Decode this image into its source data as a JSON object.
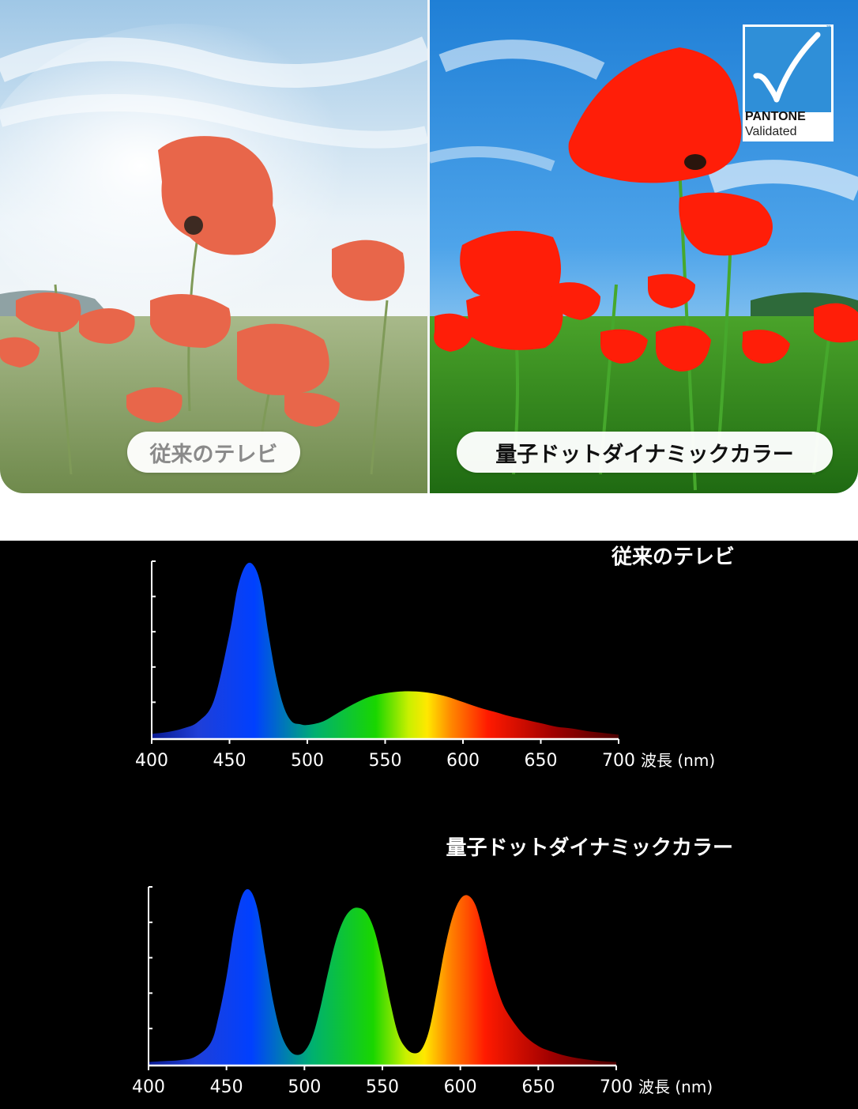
{
  "photo": {
    "left_label": "従来のテレビ",
    "right_label": "量子ドットダイナミックカラー",
    "badge": {
      "icon": "checkmark-icon",
      "name": "PANTONE",
      "subtitle": "Validated",
      "tm": "™"
    }
  },
  "chart_data": [
    {
      "type": "area",
      "title": "従来のテレビ",
      "xlabel": "波長 (nm)",
      "ylabel": "",
      "xlim": [
        400,
        700
      ],
      "ylim": [
        0,
        1
      ],
      "x_ticks": [
        400,
        450,
        500,
        550,
        600,
        650,
        700
      ],
      "y_tick_count": 5,
      "fill": "spectral-gradient",
      "x": [
        400,
        410,
        420,
        430,
        440,
        450,
        455,
        460,
        465,
        470,
        475,
        480,
        485,
        490,
        495,
        500,
        510,
        520,
        530,
        540,
        550,
        560,
        570,
        580,
        590,
        600,
        610,
        620,
        630,
        640,
        650,
        660,
        670,
        680,
        690,
        700
      ],
      "values": [
        0.03,
        0.04,
        0.06,
        0.1,
        0.22,
        0.6,
        0.85,
        0.98,
        0.99,
        0.88,
        0.6,
        0.35,
        0.18,
        0.1,
        0.085,
        0.08,
        0.1,
        0.15,
        0.2,
        0.24,
        0.26,
        0.27,
        0.27,
        0.26,
        0.24,
        0.21,
        0.18,
        0.155,
        0.13,
        0.11,
        0.09,
        0.07,
        0.06,
        0.045,
        0.035,
        0.025
      ]
    },
    {
      "type": "area",
      "title": "量子ドットダイナミックカラー",
      "xlabel": "波長 (nm)",
      "ylabel": "",
      "xlim": [
        400,
        700
      ],
      "ylim": [
        0,
        1
      ],
      "x_ticks": [
        400,
        450,
        500,
        550,
        600,
        650,
        700
      ],
      "y_tick_count": 5,
      "fill": "spectral-gradient",
      "x": [
        400,
        410,
        420,
        430,
        440,
        445,
        450,
        455,
        460,
        465,
        470,
        475,
        480,
        485,
        490,
        495,
        500,
        505,
        510,
        515,
        520,
        525,
        530,
        535,
        540,
        545,
        550,
        555,
        560,
        565,
        570,
        575,
        580,
        585,
        590,
        595,
        600,
        605,
        610,
        615,
        620,
        625,
        630,
        640,
        650,
        660,
        670,
        680,
        690,
        700
      ],
      "values": [
        0.02,
        0.025,
        0.03,
        0.05,
        0.13,
        0.28,
        0.5,
        0.78,
        0.96,
        0.99,
        0.88,
        0.62,
        0.36,
        0.18,
        0.09,
        0.06,
        0.08,
        0.16,
        0.32,
        0.52,
        0.7,
        0.82,
        0.88,
        0.89,
        0.86,
        0.76,
        0.58,
        0.36,
        0.18,
        0.1,
        0.07,
        0.09,
        0.2,
        0.42,
        0.66,
        0.84,
        0.94,
        0.96,
        0.9,
        0.74,
        0.55,
        0.4,
        0.3,
        0.18,
        0.11,
        0.075,
        0.05,
        0.035,
        0.025,
        0.02
      ]
    }
  ]
}
